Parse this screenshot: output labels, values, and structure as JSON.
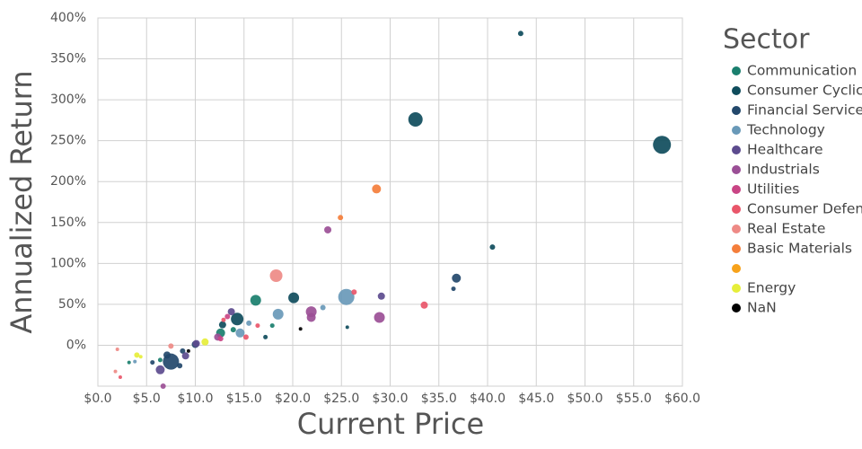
{
  "chart_data": {
    "type": "scatter",
    "xlabel": "Current Price",
    "ylabel": "Annualized Return",
    "legend_title": "Sector",
    "xlim": [
      0,
      60
    ],
    "ylim": [
      -50,
      400
    ],
    "xticks": [
      {
        "value": 0,
        "label": "$0.0"
      },
      {
        "value": 5,
        "label": "$5.0"
      },
      {
        "value": 10,
        "label": "$10.0"
      },
      {
        "value": 15,
        "label": "$15.0"
      },
      {
        "value": 20,
        "label": "$20.0"
      },
      {
        "value": 25,
        "label": "$25.0"
      },
      {
        "value": 30,
        "label": "$30.0"
      },
      {
        "value": 35,
        "label": "$35.0"
      },
      {
        "value": 40,
        "label": "$40.0"
      },
      {
        "value": 45,
        "label": "$45.0"
      },
      {
        "value": 50,
        "label": "$50.0"
      },
      {
        "value": 55,
        "label": "$55.0"
      },
      {
        "value": 60,
        "label": "$60.0"
      }
    ],
    "yticks": [
      {
        "value": 0,
        "label": "0%"
      },
      {
        "value": 50,
        "label": "50%"
      },
      {
        "value": 100,
        "label": "100%"
      },
      {
        "value": 150,
        "label": "150%"
      },
      {
        "value": 200,
        "label": "200%"
      },
      {
        "value": 250,
        "label": "250%"
      },
      {
        "value": 300,
        "label": "300%"
      },
      {
        "value": 350,
        "label": "350%"
      },
      {
        "value": 400,
        "label": "400%"
      }
    ],
    "grid": true,
    "legend": "right",
    "series": [
      {
        "name": "Communication Services",
        "color": "#1a7f6e",
        "x": [
          16.2,
          12.6,
          13.9,
          17.9,
          3.2,
          6.4
        ],
        "values": [
          55,
          15,
          19,
          24,
          -21,
          -18
        ],
        "sizes": [
          5,
          4,
          2,
          1.5,
          1,
          1.5
        ]
      },
      {
        "name": "Consumer Cyclical",
        "color": "#0f4c5c",
        "x": [
          43.4,
          32.6,
          57.9,
          40.5,
          20.1,
          14.3,
          25.6,
          12.8,
          17.2
        ],
        "values": [
          381,
          276,
          245,
          120,
          58,
          32,
          22,
          25,
          10
        ],
        "sizes": [
          2,
          7,
          9,
          2,
          5,
          6,
          1,
          3,
          1.5
        ]
      },
      {
        "name": "Financial Services",
        "color": "#23486b",
        "x": [
          36.8,
          36.5,
          7.5,
          8.4,
          10,
          7.1,
          5.6,
          8.7
        ],
        "values": [
          82,
          69,
          -20,
          -25,
          1,
          -12,
          -21,
          -7
        ],
        "sizes": [
          4,
          1.5,
          8,
          2,
          3,
          3,
          1.5,
          2
        ]
      },
      {
        "name": "Technology",
        "color": "#6999b8",
        "x": [
          25.5,
          18.5,
          23.1,
          14.6,
          15.5,
          3.8
        ],
        "values": [
          59,
          38,
          46,
          15,
          27,
          -20
        ],
        "sizes": [
          8,
          5,
          2,
          4,
          2,
          1
        ]
      },
      {
        "name": "Healthcare",
        "color": "#5c4b8e",
        "x": [
          29.1,
          13.7,
          6.4,
          9,
          10.1
        ],
        "values": [
          60,
          41,
          -30,
          -13,
          2
        ],
        "sizes": [
          3,
          3,
          4,
          3,
          3
        ]
      },
      {
        "name": "Industrials",
        "color": "#9b4f96",
        "x": [
          23.6,
          28.9,
          21.9,
          21.9,
          12.3,
          6.7
        ],
        "values": [
          141,
          34,
          41,
          34,
          10,
          -50
        ],
        "sizes": [
          3,
          5,
          5,
          4,
          3,
          2
        ]
      },
      {
        "name": "Utilities",
        "color": "#c94585",
        "x": [
          13.3,
          12.6
        ],
        "values": [
          35,
          8
        ],
        "sizes": [
          2,
          2
        ]
      },
      {
        "name": "Consumer Defensive",
        "color": "#e9566a",
        "x": [
          33.5,
          26.3,
          16.4,
          15.2,
          2.3,
          12.9
        ],
        "values": [
          49,
          65,
          24,
          10,
          -39,
          31
        ],
        "sizes": [
          3,
          2,
          1.5,
          2,
          1,
          1.5
        ]
      },
      {
        "name": "Real Estate",
        "color": "#ee8a86",
        "x": [
          18.3,
          7.5,
          1.8,
          2
        ],
        "values": [
          85,
          -1,
          -32,
          -5
        ],
        "sizes": [
          6,
          2,
          1,
          1
        ]
      },
      {
        "name": "Basic Materials",
        "color": "#f47e3b",
        "x": [
          28.6,
          24.9
        ],
        "values": [
          191,
          156
        ],
        "sizes": [
          4,
          2
        ]
      },
      {
        "name": null,
        "color": "#f7a21b",
        "x": [],
        "values": [],
        "sizes": []
      },
      {
        "name": "Energy",
        "color": "#e6ee3a",
        "x": [
          4,
          11,
          4.4
        ],
        "values": [
          -12,
          4,
          -14
        ],
        "sizes": [
          2,
          3,
          1
        ]
      },
      {
        "name": "NaN",
        "color": "#000000",
        "x": [
          9.3,
          20.8
        ],
        "values": [
          -7,
          20
        ],
        "sizes": [
          1,
          1
        ]
      }
    ]
  }
}
